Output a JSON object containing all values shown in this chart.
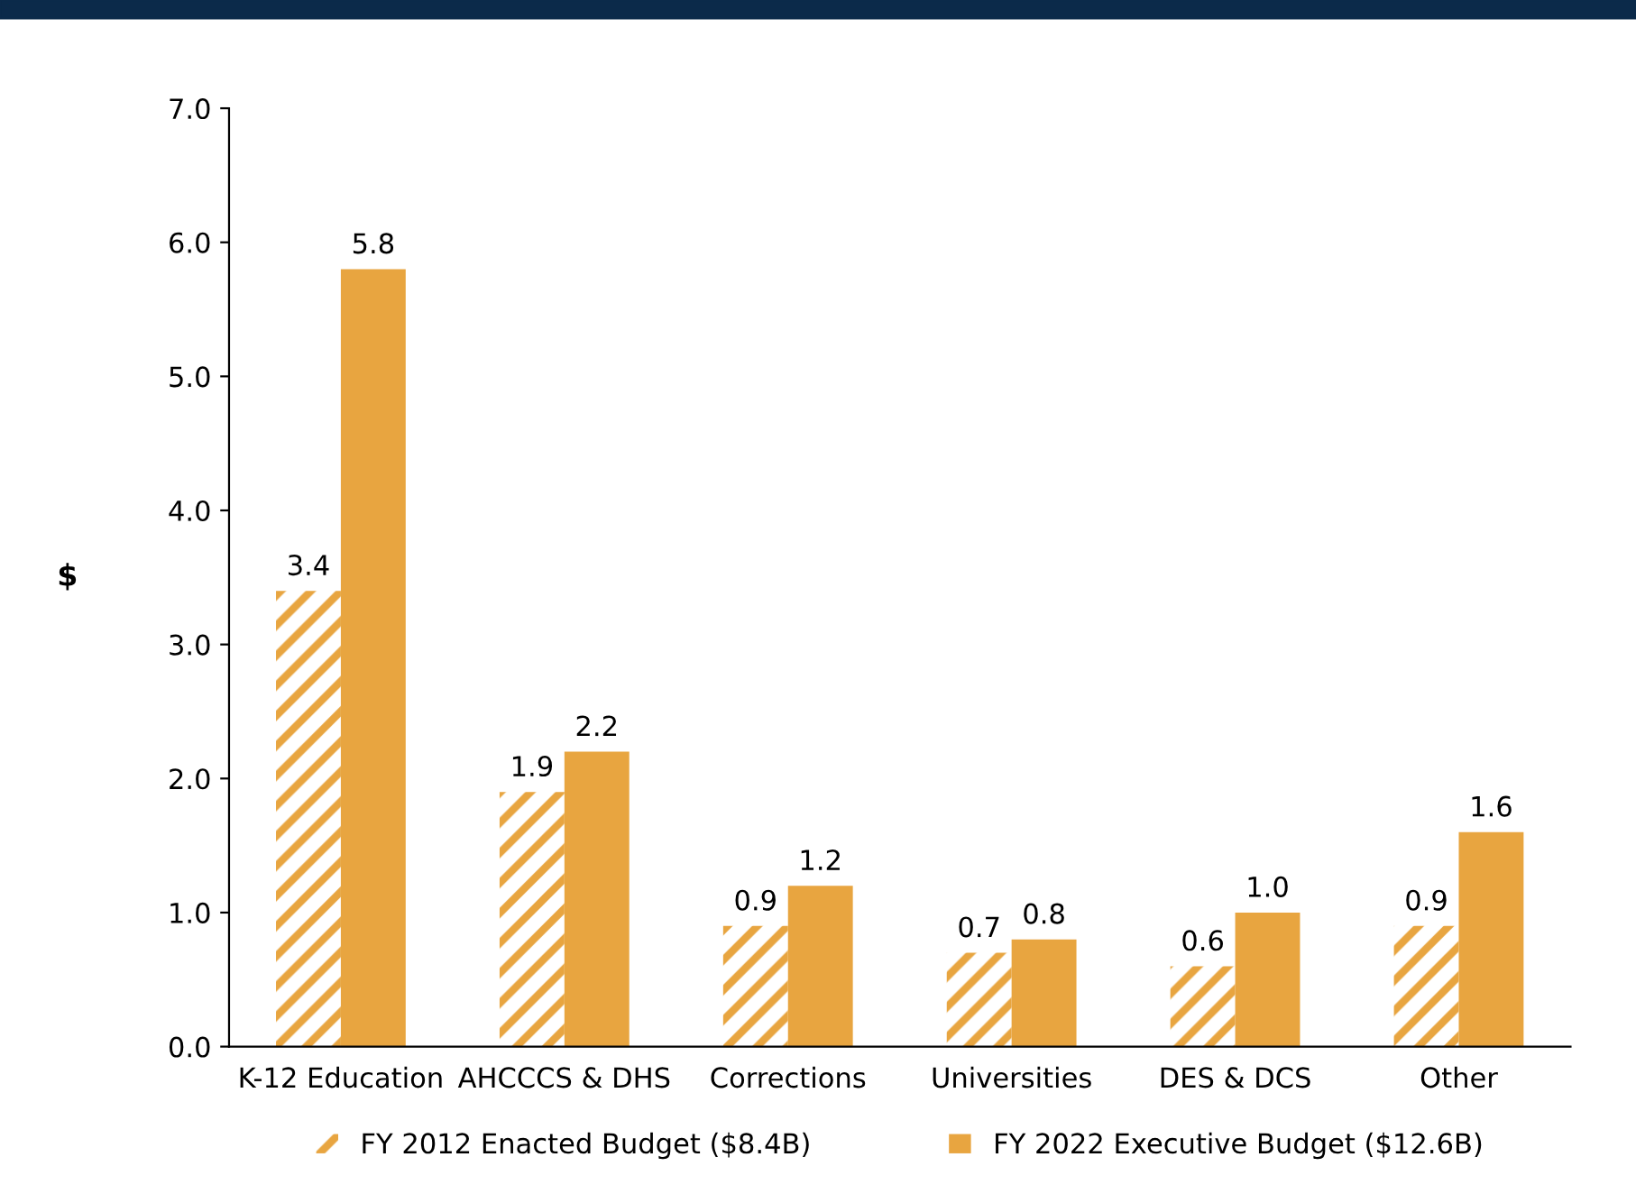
{
  "chart_data": {
    "type": "bar",
    "ylabel": "$",
    "categories": [
      "K-12 Education",
      "AHCCCS & DHS",
      "Corrections",
      "Universities",
      "DES & DCS",
      "Other"
    ],
    "series": [
      {
        "name": "FY 2012 Enacted Budget ($8.4B)",
        "color": "#e8a540",
        "values": [
          3.4,
          1.9,
          0.9,
          0.7,
          0.6,
          0.9
        ],
        "value_labels": [
          "3.4",
          "1.9",
          "0.9",
          "0.7",
          "0.6",
          "0.9"
        ]
      },
      {
        "name": "FY 2022 Executive Budget ($12.6B)",
        "color": "#e8a540",
        "values": [
          5.8,
          2.2,
          1.2,
          0.8,
          1.0,
          1.6
        ],
        "value_labels": [
          "5.8",
          "2.2",
          "1.2",
          "0.8",
          "1.0",
          "1.6"
        ]
      }
    ],
    "ylim": [
      0,
      7
    ],
    "yticks": [
      {
        "value": 0,
        "label": "0.0"
      },
      {
        "value": 1,
        "label": "1.0"
      },
      {
        "value": 2,
        "label": "2.0"
      },
      {
        "value": 3,
        "label": "3.0"
      },
      {
        "value": 4,
        "label": "4.0"
      },
      {
        "value": 5,
        "label": "5.0"
      },
      {
        "value": 6,
        "label": "6.0"
      },
      {
        "value": 7,
        "label": "7.0"
      }
    ],
    "grid": false,
    "legend": "bottom"
  }
}
